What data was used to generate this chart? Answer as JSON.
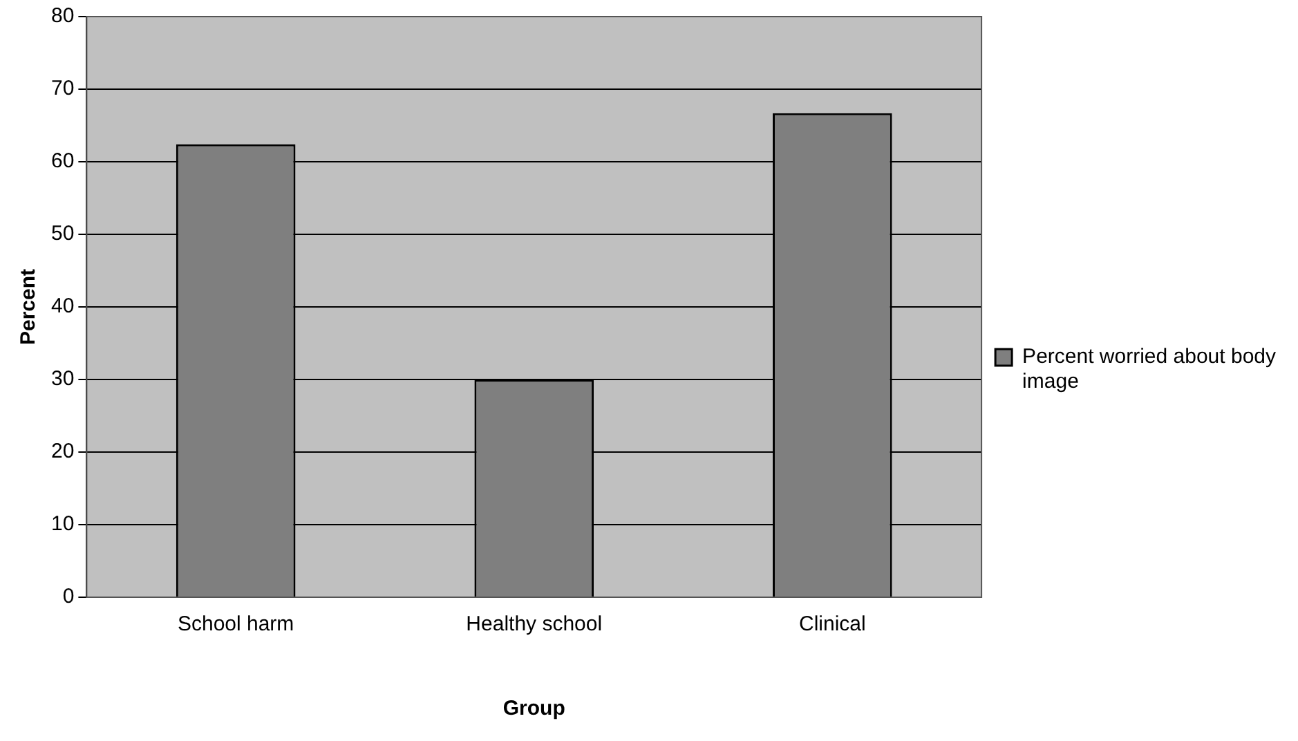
{
  "chart_data": {
    "type": "bar",
    "xlabel": "Group",
    "ylabel": "Percent",
    "categories": [
      "School harm",
      "Healthy school",
      "Clinical"
    ],
    "series": [
      {
        "name": "Percent worried about body image",
        "color": "#7f7f7f",
        "values": [
          62.4,
          30,
          66.7
        ]
      }
    ],
    "ylim": [
      0,
      80
    ],
    "yticks": [
      0,
      10,
      20,
      30,
      40,
      50,
      60,
      70,
      80
    ],
    "grid": "y",
    "legend": "right"
  }
}
